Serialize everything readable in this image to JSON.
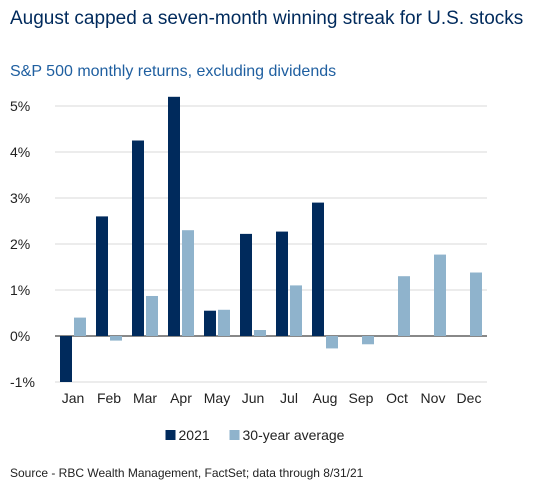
{
  "title": "August capped a seven-month winning streak for U.S. stocks",
  "subtitle": "S&P 500 monthly returns, excluding dividends",
  "source": "Source - RBC Wealth Management, FactSet; data through 8/31/21",
  "colors": {
    "series_2021": "#002a5c",
    "series_avg": "#8fb3cc",
    "grid": "#d9d9d9",
    "axis": "#404040",
    "text": "#222222"
  },
  "chart_data": {
    "type": "bar",
    "categories": [
      "Jan",
      "Feb",
      "Mar",
      "Apr",
      "May",
      "Jun",
      "Jul",
      "Aug",
      "Sep",
      "Oct",
      "Nov",
      "Dec"
    ],
    "series": [
      {
        "name": "2021",
        "values": [
          -1.0,
          2.6,
          4.25,
          5.2,
          0.55,
          2.22,
          2.27,
          2.9,
          null,
          null,
          null,
          null
        ]
      },
      {
        "name": "30-year average",
        "values": [
          0.4,
          -0.1,
          0.87,
          2.3,
          0.57,
          0.13,
          1.1,
          -0.27,
          -0.18,
          1.3,
          1.77,
          1.38
        ]
      }
    ],
    "ylim": [
      -1,
      5
    ],
    "yticks": [
      -1,
      0,
      1,
      2,
      3,
      4,
      5
    ],
    "ytick_labels": [
      "-1%",
      "0%",
      "1%",
      "2%",
      "3%",
      "4%",
      "5%"
    ],
    "grid": true,
    "legend": "bottom-center"
  }
}
